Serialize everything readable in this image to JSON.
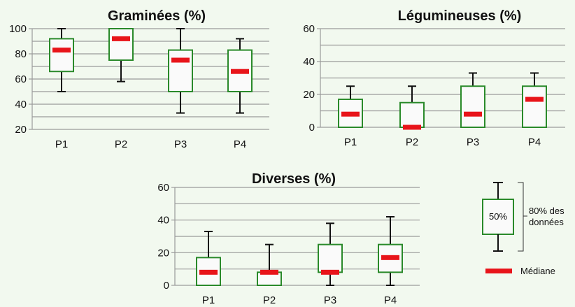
{
  "chart_data": [
    {
      "type": "boxplot",
      "title": "Graminées (%)",
      "categories": [
        "P1",
        "P2",
        "P3",
        "P4"
      ],
      "ylim": [
        20,
        100
      ],
      "yticks": [
        20,
        40,
        60,
        80,
        100
      ],
      "grid": true,
      "boxes": [
        {
          "whisker_low": 50,
          "q1": 66,
          "median": 83,
          "q3": 92,
          "whisker_high": 100
        },
        {
          "whisker_low": 58,
          "q1": 75,
          "median": 92,
          "q3": 100,
          "whisker_high": 100
        },
        {
          "whisker_low": 33,
          "q1": 50,
          "median": 75,
          "q3": 83,
          "whisker_high": 100
        },
        {
          "whisker_low": 33,
          "q1": 50,
          "median": 66,
          "q3": 83,
          "whisker_high": 92
        }
      ]
    },
    {
      "type": "boxplot",
      "title": "Légumineuses (%)",
      "categories": [
        "P1",
        "P2",
        "P3",
        "P4"
      ],
      "ylim": [
        0,
        60
      ],
      "yticks": [
        0,
        20,
        40,
        60
      ],
      "grid": true,
      "boxes": [
        {
          "whisker_low": 0,
          "q1": 0,
          "median": 8,
          "q3": 17,
          "whisker_high": 25
        },
        {
          "whisker_low": 0,
          "q1": 0,
          "median": 0,
          "q3": 15,
          "whisker_high": 25
        },
        {
          "whisker_low": 0,
          "q1": 0,
          "median": 8,
          "q3": 25,
          "whisker_high": 33
        },
        {
          "whisker_low": 0,
          "q1": 0,
          "median": 17,
          "q3": 25,
          "whisker_high": 33
        }
      ]
    },
    {
      "type": "boxplot",
      "title": "Diverses (%)",
      "categories": [
        "P1",
        "P2",
        "P3",
        "P4"
      ],
      "ylim": [
        0,
        60
      ],
      "yticks": [
        0,
        20,
        40,
        60
      ],
      "grid": true,
      "boxes": [
        {
          "whisker_low": 0,
          "q1": 0,
          "median": 8,
          "q3": 17,
          "whisker_high": 33
        },
        {
          "whisker_low": 0,
          "q1": 0,
          "median": 8,
          "q3": 8,
          "whisker_high": 25
        },
        {
          "whisker_low": 0,
          "q1": 8,
          "median": 8,
          "q3": 25,
          "whisker_high": 38
        },
        {
          "whisker_low": 0,
          "q1": 8,
          "median": 17,
          "q3": 25,
          "whisker_high": 42
        }
      ]
    }
  ],
  "legend": {
    "box_label": "50%",
    "range_label_line1": "80% des",
    "range_label_line2": "données",
    "median_label": "Médiane"
  },
  "colors": {
    "box_stroke": "#2a8a2a",
    "box_fill": "#fafafa",
    "median": "#e8141a",
    "grid": "#9a9a9a",
    "whisker": "#111111"
  }
}
